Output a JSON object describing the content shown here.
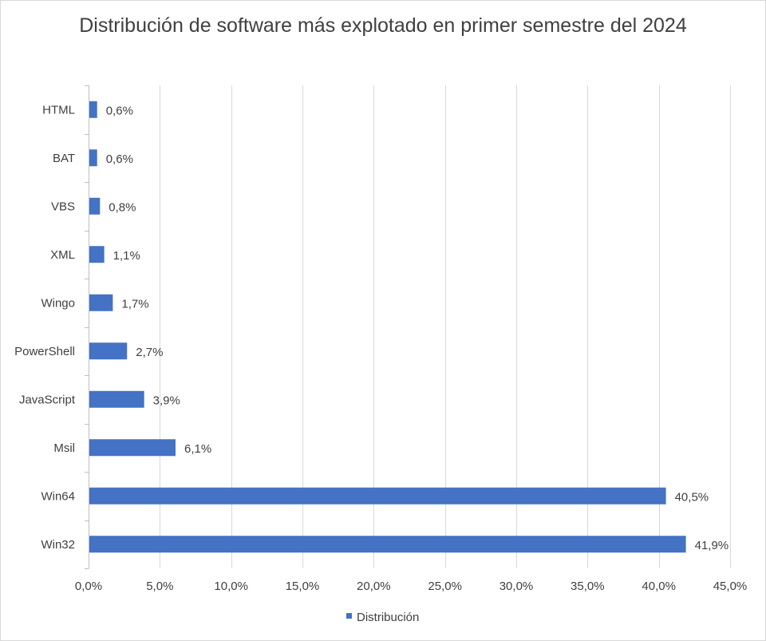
{
  "chart_data": {
    "type": "bar",
    "orientation": "horizontal",
    "title": "Distribución de software más explotado en primer semestre del 2024",
    "categories": [
      "HTML",
      "BAT",
      "VBS",
      "XML",
      "Wingo",
      "PowerShell",
      "JavaScript",
      "Msil",
      "Win64",
      "Win32"
    ],
    "series": [
      {
        "name": "Distribución",
        "values": [
          0.6,
          0.6,
          0.8,
          1.1,
          1.7,
          2.7,
          3.9,
          6.1,
          40.5,
          41.9
        ],
        "labels": [
          "0,6%",
          "0,6%",
          "0,8%",
          "1,1%",
          "1,7%",
          "2,7%",
          "3,9%",
          "6,1%",
          "40,5%",
          "41,9%"
        ],
        "color": "#4472c4"
      }
    ],
    "x_ticks": [
      0,
      5,
      10,
      15,
      20,
      25,
      30,
      35,
      40,
      45
    ],
    "x_tick_labels": [
      "0,0%",
      "5,0%",
      "10,0%",
      "15,0%",
      "20,0%",
      "25,0%",
      "30,0%",
      "35,0%",
      "40,0%",
      "45,0%"
    ],
    "xlim": [
      0,
      45
    ],
    "xlabel": "",
    "ylabel": "",
    "grid": "vertical",
    "legend": "bottom"
  }
}
